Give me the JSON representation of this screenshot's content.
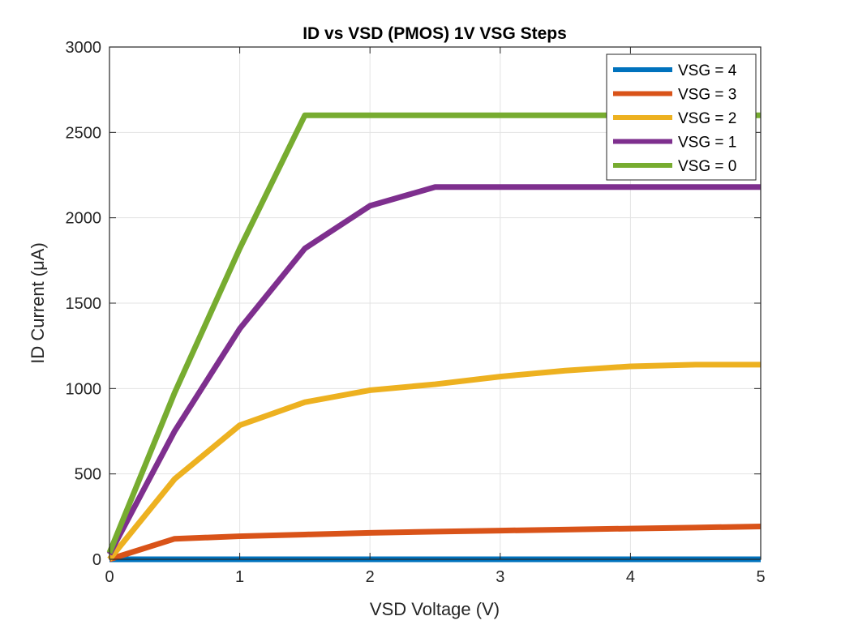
{
  "chart_data": {
    "type": "line",
    "title": "ID vs VSD (PMOS) 1V VSG Steps",
    "xlabel": "VSD Voltage (V)",
    "ylabel": "ID Current (μA)",
    "xlim": [
      0,
      5
    ],
    "ylim": [
      0,
      3000
    ],
    "xticks": [
      0,
      1,
      2,
      3,
      4,
      5
    ],
    "yticks": [
      0,
      500,
      1000,
      1500,
      2000,
      2500,
      3000
    ],
    "grid": true,
    "legend_position": "top-right",
    "x": [
      0,
      0.5,
      1,
      1.5,
      2,
      2.5,
      3,
      3.5,
      4,
      4.5,
      5
    ],
    "series": [
      {
        "name": "VSG = 4",
        "color": "#0072BD",
        "values": [
          0,
          0,
          0,
          0,
          0,
          0,
          0,
          0,
          0,
          0,
          0
        ]
      },
      {
        "name": "VSG = 3",
        "color": "#D95319",
        "values": [
          0,
          120,
          135,
          145,
          155,
          162,
          168,
          174,
          180,
          186,
          192
        ]
      },
      {
        "name": "VSG = 2",
        "color": "#EDB120",
        "values": [
          0,
          470,
          785,
          920,
          990,
          1025,
          1070,
          1105,
          1130,
          1140,
          1140
        ]
      },
      {
        "name": "VSG = 1",
        "color": "#7E2F8E",
        "values": [
          30,
          750,
          1350,
          1820,
          2070,
          2180,
          2180,
          2180,
          2180,
          2180,
          2180
        ]
      },
      {
        "name": "VSG = 0",
        "color": "#77AC30",
        "values": [
          38,
          975,
          1820,
          2600,
          2600,
          2600,
          2600,
          2600,
          2600,
          2600,
          2600
        ]
      }
    ]
  }
}
